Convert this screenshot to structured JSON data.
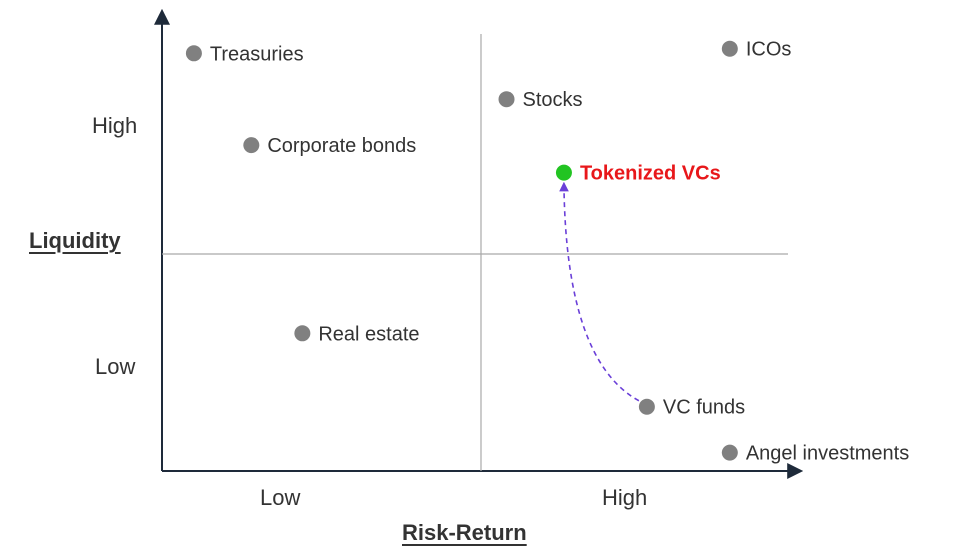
{
  "chart_data": {
    "type": "scatter",
    "xlabel": "Risk-Return",
    "ylabel": "Liquidity",
    "x_ticks": [
      "Low",
      "High"
    ],
    "y_ticks": [
      "High",
      "Low"
    ],
    "xlim": [
      0,
      10
    ],
    "ylim": [
      0,
      10
    ],
    "quadrant_split": {
      "x": 5,
      "y": 5
    },
    "points": [
      {
        "label": "Treasuries",
        "x": 0.5,
        "y": 9.1,
        "color": "#808080",
        "highlight": false
      },
      {
        "label": "ICOs",
        "x": 8.9,
        "y": 9.2,
        "color": "#808080",
        "highlight": false
      },
      {
        "label": "Stocks",
        "x": 5.4,
        "y": 8.1,
        "color": "#808080",
        "highlight": false
      },
      {
        "label": "Corporate bonds",
        "x": 1.4,
        "y": 7.1,
        "color": "#808080",
        "highlight": false
      },
      {
        "label": "Tokenized VCs",
        "x": 6.3,
        "y": 6.5,
        "color": "#22c422",
        "label_color": "#e8171a",
        "highlight": true
      },
      {
        "label": "Real estate",
        "x": 2.2,
        "y": 3.0,
        "color": "#808080",
        "highlight": false
      },
      {
        "label": "VC funds",
        "x": 7.6,
        "y": 1.4,
        "color": "#808080",
        "highlight": false
      },
      {
        "label": "Angel investments",
        "x": 8.9,
        "y": 0.4,
        "color": "#808080",
        "highlight": false
      }
    ],
    "arrow": {
      "from": "VC funds",
      "to": "Tokenized VCs",
      "style": "dashed",
      "color": "#6a3fd8"
    }
  }
}
